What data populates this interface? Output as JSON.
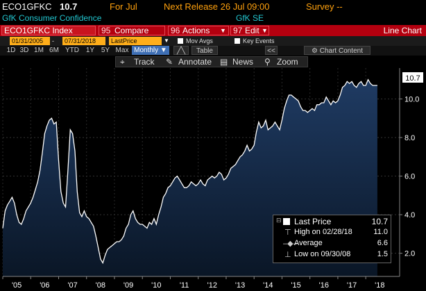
{
  "header": {
    "ticker": "ECO1GFKC",
    "last_value": "10.7",
    "for_label": "For Jul",
    "next_release": "Next Release 26 Jul 09:00",
    "survey": "Survey --",
    "indicator_name": "GfK Consumer Confidence",
    "source": "GfK SE"
  },
  "toolbar": {
    "index_label": "ECO1GFKC Index",
    "compare_num": "95",
    "compare_label": "Compare",
    "actions_num": "96",
    "actions_label": "Actions",
    "edit_num": "97",
    "edit_label": "Edit",
    "chart_type": "Line Chart"
  },
  "filters": {
    "start_date": "01/31/2005",
    "end_date": "07/31/2018",
    "field": "LastPrice",
    "mov_avgs": "Mov Avgs",
    "key_events": "Key Events"
  },
  "periods": [
    "1D",
    "3D",
    "1M",
    "6M",
    "YTD",
    "1Y",
    "5Y",
    "Max"
  ],
  "frequency": "Monthly",
  "table_label": "Table",
  "collapse_label": "<<",
  "chart_content_label": "Chart Content",
  "tools": {
    "track": "Track",
    "annotate": "Annotate",
    "news": "News",
    "zoom": "Zoom"
  },
  "colors": {
    "accent_red": "#b4000f",
    "header_orange": "#ffa10d",
    "title_cyan": "#22c6d0",
    "line": "#ffffff",
    "area_top": "#1f3b63",
    "area_bottom": "#0a1626"
  },
  "legend": {
    "last_price_label": "Last Price",
    "last_price_value": "10.7",
    "high_label": "High on 02/28/18",
    "high_value": "11.0",
    "average_label": "Average",
    "average_value": "6.6",
    "low_label": "Low on 09/30/08",
    "low_value": "1.5"
  },
  "chart_data": {
    "type": "area",
    "x_labels": [
      "'05",
      "'06",
      "'07",
      "'08",
      "'09",
      "'10",
      "'11",
      "'12",
      "'13",
      "'14",
      "'15",
      "'16",
      "'17",
      "'18"
    ],
    "y_ticks": [
      "2.0",
      "4.0",
      "6.0",
      "8.0",
      "10.0"
    ],
    "ylim": [
      0.8,
      11.6
    ],
    "last_value_label": "10.7",
    "start": "2005-01",
    "values": [
      3.3,
      4.2,
      4.5,
      4.7,
      4.9,
      4.6,
      4.0,
      3.6,
      3.5,
      3.8,
      4.2,
      4.4,
      4.6,
      4.9,
      5.3,
      5.7,
      6.3,
      7.2,
      8.2,
      8.6,
      8.9,
      9.0,
      8.7,
      8.8,
      6.8,
      5.2,
      4.6,
      4.4,
      6.3,
      8.4,
      8.2,
      7.3,
      5.2,
      4.1,
      3.9,
      4.2,
      3.9,
      3.8,
      3.6,
      3.4,
      2.9,
      2.3,
      1.7,
      1.5,
      1.9,
      2.2,
      2.3,
      2.4,
      2.5,
      2.6,
      2.6,
      2.7,
      2.9,
      3.3,
      3.5,
      4.0,
      4.2,
      3.8,
      3.6,
      3.5,
      3.5,
      3.4,
      3.3,
      3.6,
      3.5,
      3.8,
      3.5,
      4.0,
      4.4,
      4.9,
      5.1,
      5.4,
      5.5,
      5.7,
      5.9,
      6.0,
      5.8,
      5.6,
      5.4,
      5.4,
      5.5,
      5.7,
      5.6,
      5.5,
      5.6,
      5.8,
      5.6,
      5.5,
      5.8,
      5.9,
      6.0,
      5.9,
      6.0,
      6.2,
      6.1,
      5.8,
      5.9,
      6.1,
      6.4,
      6.5,
      6.6,
      6.8,
      7.0,
      7.1,
      7.3,
      7.6,
      7.3,
      7.4,
      7.6,
      8.3,
      8.8,
      8.5,
      8.6,
      8.9,
      8.4,
      8.5,
      8.6,
      8.8,
      8.6,
      8.4,
      8.9,
      9.5,
      9.9,
      10.2,
      10.2,
      10.1,
      10.0,
      9.9,
      9.6,
      9.4,
      9.4,
      9.3,
      9.4,
      9.5,
      9.4,
      9.7,
      9.7,
      9.8,
      9.8,
      10.1,
      9.9,
      9.7,
      9.9,
      9.8,
      9.9,
      10.2,
      10.6,
      10.7,
      10.9,
      10.8,
      10.9,
      10.7,
      10.6,
      10.8,
      10.9,
      10.7,
      10.7,
      11.0,
      10.8,
      10.7,
      10.7,
      10.7
    ]
  }
}
